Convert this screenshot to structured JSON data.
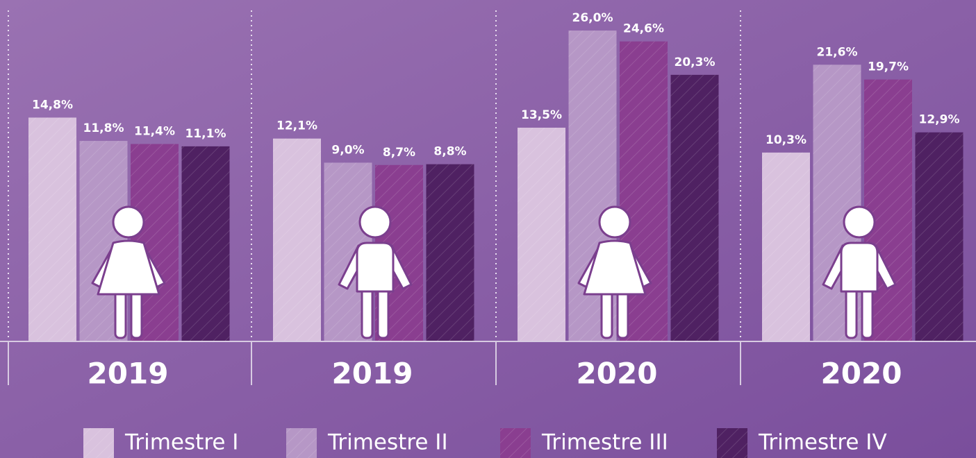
{
  "chart_data": {
    "type": "bar",
    "categories": [
      "2019",
      "2019",
      "2020",
      "2020"
    ],
    "series": [
      {
        "name": "Trimestre I",
        "color": "#d9c2de",
        "values": [
          14.8,
          12.1,
          13.5,
          10.3
        ],
        "value_labels": [
          "14,8%",
          "12,1%",
          "13,5%",
          "10,3%"
        ]
      },
      {
        "name": "Trimestre II",
        "color": "#b697c6",
        "values": [
          11.8,
          9.0,
          26.0,
          21.6
        ],
        "value_labels": [
          "11,8%",
          "9,0%",
          "26,0%",
          "21,6%"
        ]
      },
      {
        "name": "Trimestre III",
        "color": "#8a3e90",
        "values": [
          11.4,
          8.7,
          24.6,
          19.7
        ],
        "value_labels": [
          "11,4%",
          "8,7%",
          "24,6%",
          "19,7%"
        ]
      },
      {
        "name": "Trimestre IV",
        "color": "#4f2162",
        "values": [
          11.1,
          8.8,
          20.3,
          12.9
        ],
        "value_labels": [
          "11,1%",
          "8,8%",
          "20,3%",
          "12,9%"
        ]
      }
    ],
    "ylim": [
      -14,
      26
    ]
  }
}
